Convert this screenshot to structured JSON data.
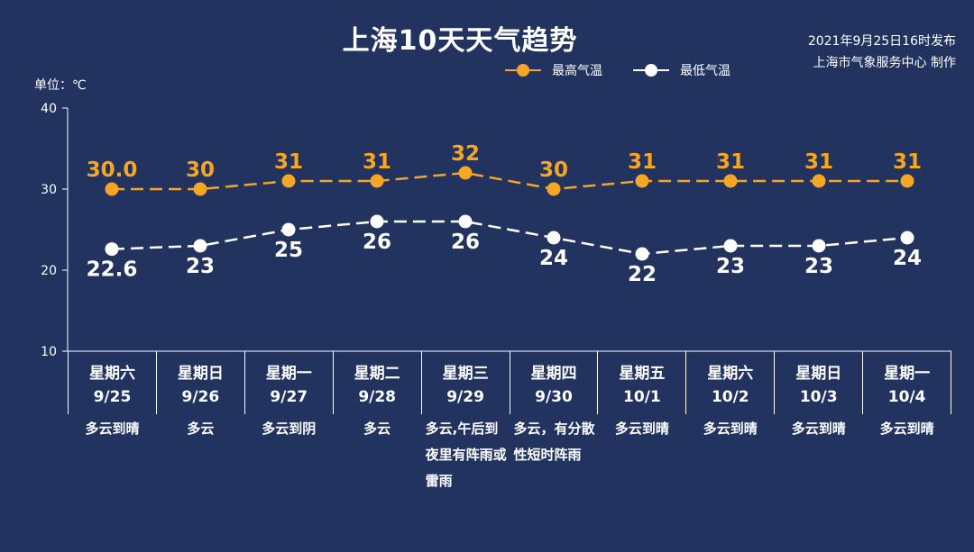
{
  "header": {
    "title": "上海10天天气趋势",
    "publish_time": "2021年9月25日16时发布",
    "publisher": "上海市气象服务中心 制作",
    "unit": "单位：℃"
  },
  "colors": {
    "high": "#f5a623",
    "low": "#ffffff",
    "background": "#22335f"
  },
  "legend": {
    "high": "最高气温",
    "low": "最低气温"
  },
  "days": [
    {
      "weekday": "星期六",
      "date": "9/25",
      "weather": "多云到晴"
    },
    {
      "weekday": "星期日",
      "date": "9/26",
      "weather": "多云"
    },
    {
      "weekday": "星期一",
      "date": "9/27",
      "weather": "多云到阴"
    },
    {
      "weekday": "星期二",
      "date": "9/28",
      "weather": "多云"
    },
    {
      "weekday": "星期三",
      "date": "9/29",
      "weather": "多云,午后到夜里有阵雨或雷雨"
    },
    {
      "weekday": "星期四",
      "date": "9/30",
      "weather": "多云，有分散性短时阵雨"
    },
    {
      "weekday": "星期五",
      "date": "10/1",
      "weather": "多云到晴"
    },
    {
      "weekday": "星期六",
      "date": "10/2",
      "weather": "多云到晴"
    },
    {
      "weekday": "星期日",
      "date": "10/3",
      "weather": "多云到晴"
    },
    {
      "weekday": "星期一",
      "date": "10/4",
      "weather": "多云到晴"
    }
  ],
  "chart_data": {
    "type": "line",
    "title": "上海10天天气趋势",
    "ylabel": "单位：℃",
    "ylim": [
      10,
      40
    ],
    "yticks": [
      10,
      20,
      30,
      40
    ],
    "grid": false,
    "legend_position": "top-right",
    "categories": [
      "9/25",
      "9/26",
      "9/27",
      "9/28",
      "9/29",
      "9/30",
      "10/1",
      "10/2",
      "10/3",
      "10/4"
    ],
    "series": [
      {
        "name": "最高气温",
        "values": [
          30.0,
          30,
          31,
          31,
          32,
          30,
          31,
          31,
          31,
          31
        ],
        "labels": [
          "30.0",
          "30",
          "31",
          "31",
          "32",
          "30",
          "31",
          "31",
          "31",
          "31"
        ]
      },
      {
        "name": "最低气温",
        "values": [
          22.6,
          23,
          25,
          26,
          26,
          24,
          22,
          23,
          23,
          24
        ],
        "labels": [
          "22.6",
          "23",
          "25",
          "26",
          "26",
          "24",
          "22",
          "23",
          "23",
          "24"
        ]
      }
    ]
  }
}
